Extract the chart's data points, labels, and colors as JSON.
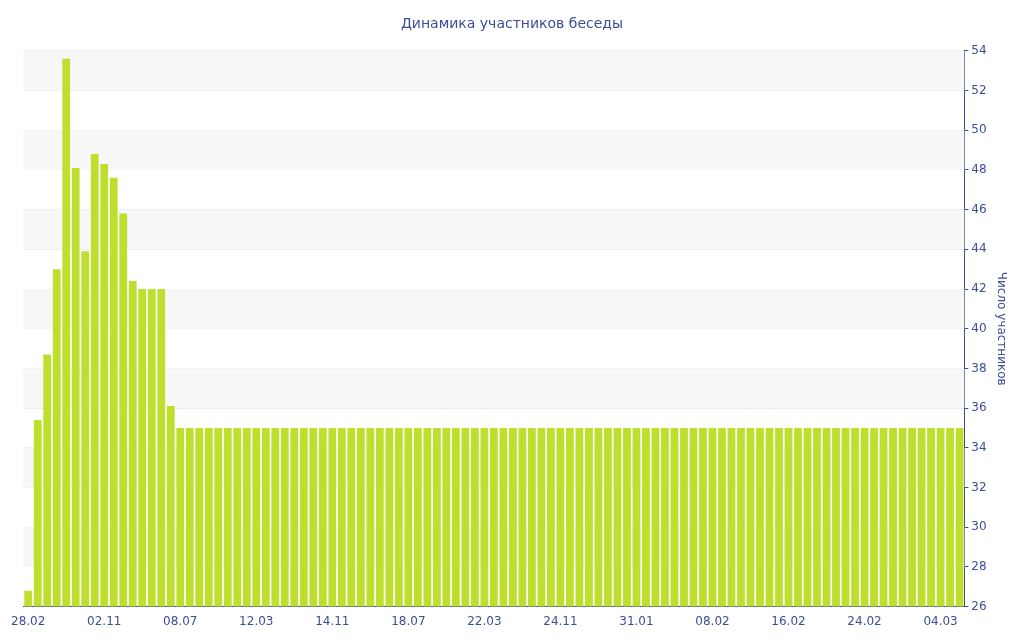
{
  "chart_data": {
    "type": "bar",
    "title": "Динамика участников беседы",
    "ylabel": "Число участников",
    "categories": [
      "28.02",
      null,
      null,
      null,
      null,
      null,
      null,
      null,
      "02.11",
      null,
      null,
      null,
      null,
      null,
      null,
      null,
      "08.07",
      null,
      null,
      null,
      null,
      null,
      null,
      null,
      "12.03",
      null,
      null,
      null,
      null,
      null,
      null,
      null,
      "14.11",
      null,
      null,
      null,
      null,
      null,
      null,
      null,
      "18.07",
      null,
      null,
      null,
      null,
      null,
      null,
      null,
      "22.03",
      null,
      null,
      null,
      null,
      null,
      null,
      null,
      "24.11",
      null,
      null,
      null,
      null,
      null,
      null,
      null,
      "31.01",
      null,
      null,
      null,
      null,
      null,
      null,
      null,
      "08.02",
      null,
      null,
      null,
      null,
      null,
      null,
      null,
      "16.02",
      null,
      null,
      null,
      null,
      null,
      null,
      null,
      "24.02",
      null,
      null,
      null,
      null,
      null,
      null,
      null,
      "04.03",
      null,
      null
    ],
    "values": [
      26.8,
      35.4,
      38.7,
      43.0,
      53.6,
      48.1,
      43.9,
      48.8,
      48.3,
      47.6,
      45.8,
      42.4,
      42.0,
      42.0,
      42.0,
      36.1,
      35,
      35,
      35,
      35,
      35,
      35,
      35,
      35,
      35,
      35,
      35,
      35,
      35,
      35,
      35,
      35,
      35,
      35,
      35,
      35,
      35,
      35,
      35,
      35,
      35,
      35,
      35,
      35,
      35,
      35,
      35,
      35,
      35,
      35,
      35,
      35,
      35,
      35,
      35,
      35,
      35,
      35,
      35,
      35,
      35,
      35,
      35,
      35,
      35,
      35,
      35,
      35,
      35,
      35,
      35,
      35,
      35,
      35,
      35,
      35,
      35,
      35,
      35,
      35,
      35,
      35,
      35,
      35,
      35,
      35,
      35,
      35,
      35,
      35,
      35,
      35,
      35,
      35,
      35,
      35,
      35,
      35,
      35
    ],
    "color": "#bedf2e",
    "ylim": [
      26,
      54
    ],
    "yticks": [
      26,
      28,
      30,
      32,
      34,
      36,
      38,
      40,
      42,
      44,
      46,
      48,
      50,
      52,
      54
    ],
    "grid": true,
    "legend": false
  }
}
